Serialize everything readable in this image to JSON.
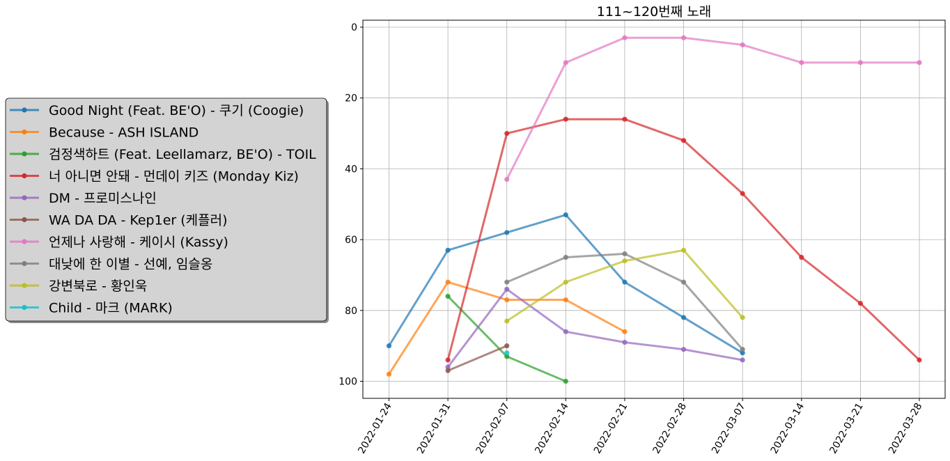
{
  "chart_data": {
    "type": "line",
    "title": "111~120번째 노래",
    "xlabel": "",
    "ylabel": "",
    "x": [
      "2022-01-24",
      "2022-01-31",
      "2022-02-07",
      "2022-02-14",
      "2022-02-21",
      "2022-02-28",
      "2022-03-07",
      "2022-03-14",
      "2022-03-21",
      "2022-03-28"
    ],
    "yticks": [
      0,
      20,
      40,
      60,
      80,
      100
    ],
    "ylim": [
      105,
      -2
    ],
    "y_inverted": true,
    "grid": true,
    "legend_position": "left, outside plot",
    "series": [
      {
        "name": "Good Night (Feat. BE'O) - 쿠기 (Coogie)",
        "color": "#1f77b4",
        "points": [
          [
            "2022-01-24",
            90
          ],
          [
            "2022-01-31",
            63
          ],
          [
            "2022-02-07",
            58
          ],
          [
            "2022-02-14",
            53
          ],
          [
            "2022-02-21",
            72
          ],
          [
            "2022-02-28",
            82
          ],
          [
            "2022-03-07",
            92
          ]
        ]
      },
      {
        "name": "Because - ASH ISLAND",
        "color": "#ff7f0e",
        "points": [
          [
            "2022-01-24",
            98
          ],
          [
            "2022-01-31",
            72
          ],
          [
            "2022-02-07",
            77
          ],
          [
            "2022-02-14",
            77
          ],
          [
            "2022-02-21",
            86
          ]
        ]
      },
      {
        "name": "검정색하트 (Feat. Leellamarz, BE'O) - TOIL",
        "color": "#2ca02c",
        "points": [
          [
            "2022-01-31",
            76
          ],
          [
            "2022-02-07",
            93
          ],
          [
            "2022-02-14",
            100
          ]
        ]
      },
      {
        "name": "너 아니면 안돼 - 먼데이 키즈 (Monday Kiz)",
        "color": "#d62728",
        "points": [
          [
            "2022-01-31",
            94
          ],
          [
            "2022-02-07",
            30
          ],
          [
            "2022-02-14",
            26
          ],
          [
            "2022-02-21",
            26
          ],
          [
            "2022-02-28",
            32
          ],
          [
            "2022-03-07",
            47
          ],
          [
            "2022-03-14",
            65
          ],
          [
            "2022-03-21",
            78
          ],
          [
            "2022-03-28",
            94
          ]
        ]
      },
      {
        "name": "DM - 프로미스나인",
        "color": "#9467bd",
        "points": [
          [
            "2022-01-31",
            96
          ],
          [
            "2022-02-07",
            74
          ],
          [
            "2022-02-14",
            86
          ],
          [
            "2022-02-21",
            89
          ],
          [
            "2022-02-28",
            91
          ],
          [
            "2022-03-07",
            94
          ]
        ]
      },
      {
        "name": "WA DA DA - Kep1er (케플러)",
        "color": "#8c564b",
        "points": [
          [
            "2022-01-31",
            97
          ],
          [
            "2022-02-07",
            90
          ]
        ]
      },
      {
        "name": "언제나 사랑해 - 케이시 (Kassy)",
        "color": "#e377c2",
        "points": [
          [
            "2022-02-07",
            43
          ],
          [
            "2022-02-14",
            10
          ],
          [
            "2022-02-21",
            3
          ],
          [
            "2022-02-28",
            3
          ],
          [
            "2022-03-07",
            5
          ],
          [
            "2022-03-14",
            10
          ],
          [
            "2022-03-21",
            10
          ],
          [
            "2022-03-28",
            10
          ]
        ]
      },
      {
        "name": "대낮에 한 이별 - 선예, 임슬옹",
        "color": "#7f7f7f",
        "points": [
          [
            "2022-02-07",
            72
          ],
          [
            "2022-02-14",
            65
          ],
          [
            "2022-02-21",
            64
          ],
          [
            "2022-02-28",
            72
          ],
          [
            "2022-03-07",
            91
          ]
        ]
      },
      {
        "name": "강변북로 - 황인욱",
        "color": "#bcbd22",
        "points": [
          [
            "2022-02-07",
            83
          ],
          [
            "2022-02-14",
            72
          ],
          [
            "2022-02-21",
            66
          ],
          [
            "2022-02-28",
            63
          ],
          [
            "2022-03-07",
            82
          ]
        ]
      },
      {
        "name": "Child - 마크 (MARK)",
        "color": "#17becf",
        "points": [
          [
            "2022-02-07",
            92
          ]
        ]
      }
    ]
  }
}
